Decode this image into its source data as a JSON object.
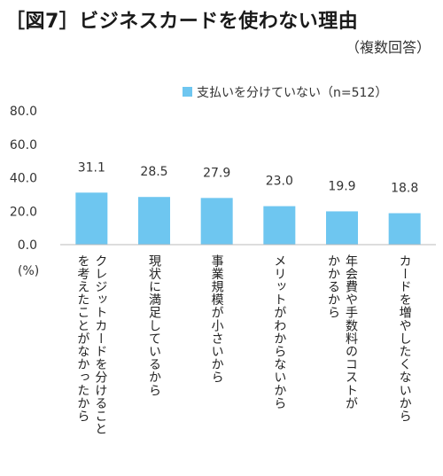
{
  "title": "［図7］ビジネスカードを使わない理由",
  "subtitle": "（複数回答）",
  "colors": {
    "bar": "#6EC6F0",
    "axis": "#bbbbbb"
  },
  "chart_data": {
    "type": "bar",
    "categories": [
      "クレジットカードを分けることを考えたことがなかったから",
      "現状に満足しているから",
      "事業規模が小さいから",
      "メリットがわからないから",
      "年会費や手数料のコストがかかるから",
      "カードを増やしたくないから"
    ],
    "category_lines": [
      [
        "クレジットカードを分けること",
        "を考えたことがなかったから"
      ],
      [
        "現状に満足しているから"
      ],
      [
        "事業規模が小さいから"
      ],
      [
        "メリットがわからないから"
      ],
      [
        "年会費や手数料のコストが",
        "かかるから"
      ],
      [
        "カードを増やしたくないから"
      ]
    ],
    "series": [
      {
        "name": "支払いを分けていない（n=512）",
        "values": [
          31.1,
          28.5,
          27.9,
          23.0,
          19.9,
          18.8
        ]
      }
    ],
    "value_labels": [
      "31.1",
      "28.5",
      "27.9",
      "23.0",
      "19.9",
      "18.8"
    ],
    "ylim": [
      0,
      80
    ],
    "yticks": [
      "0.0",
      "20.0",
      "40.0",
      "60.0",
      "80.0"
    ],
    "ylabel": "(%)",
    "legend": "top-right",
    "grid": false
  }
}
